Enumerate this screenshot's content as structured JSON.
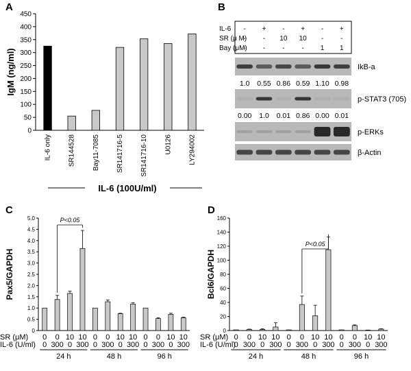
{
  "panels": {
    "A": "A",
    "B": "B",
    "C": "C",
    "D": "D"
  },
  "chart_data": [
    {
      "id": "A",
      "type": "bar",
      "ylabel": "IgM (ng/ml)",
      "ylim": [
        0,
        450
      ],
      "yticks": [
        0,
        50,
        100,
        150,
        200,
        250,
        300,
        350,
        400,
        450
      ],
      "categories": [
        "IL-6 only",
        "SR144528",
        "Bay11-7085",
        "SR141716-5",
        "SR141716-10",
        "U0126",
        "LY294002"
      ],
      "values": [
        325,
        55,
        77,
        320,
        353,
        335,
        372
      ],
      "bar_colors": [
        "#000000",
        "#c8c8c8",
        "#c8c8c8",
        "#c8c8c8",
        "#c8c8c8",
        "#c8c8c8",
        "#c8c8c8"
      ],
      "group_label": "IL-6 (100U/ml)",
      "grid": false
    },
    {
      "id": "C",
      "type": "bar",
      "ylabel": "Pax5/GAPDH",
      "ylim": [
        0,
        5.0
      ],
      "yticks": [
        "0",
        "0.5",
        "1.0",
        "1.5",
        "2.0",
        "2.5",
        "3.0",
        "3.5",
        "4.0",
        "4.5",
        "5.0"
      ],
      "values": [
        1.0,
        1.38,
        1.65,
        3.65,
        1.0,
        1.28,
        0.75,
        1.18,
        1.0,
        0.53,
        0.72,
        0.57
      ],
      "errors": [
        0,
        0.18,
        0.1,
        0.8,
        0,
        0.08,
        0.02,
        0.06,
        0,
        0.04,
        0.05,
        0.03
      ],
      "row1_label": "SR (μM)",
      "row2_label": "IL-6 (U/ml)",
      "row1_values": [
        "0",
        "0",
        "10",
        "10",
        "0",
        "0",
        "10",
        "10",
        "0",
        "0",
        "10",
        "10"
      ],
      "row2_values": [
        "0",
        "300",
        "0",
        "300",
        "0",
        "300",
        "0",
        "300",
        "0",
        "300",
        "0",
        "300"
      ],
      "groups": [
        "24 h",
        "48 h",
        "96 h"
      ],
      "significance": "P<0.05",
      "grid": false
    },
    {
      "id": "D",
      "type": "bar",
      "ylabel": "Bcl6/GAPDH",
      "ylim": [
        0,
        160
      ],
      "yticks": [
        "0",
        "20",
        "40",
        "60",
        "80",
        "100",
        "120",
        "140",
        "160"
      ],
      "values": [
        1.0,
        1.5,
        1.5,
        5.0,
        1.0,
        37.0,
        21.0,
        115.0,
        1.0,
        7.0,
        0.5,
        2.0
      ],
      "errors": [
        0,
        0.5,
        1.0,
        6.0,
        0,
        12.0,
        15.0,
        18.0,
        0,
        1.0,
        0.2,
        0.5
      ],
      "row1_label": "SR (μM)",
      "row2_label": "IL-6 (U/ml)",
      "row1_values": [
        "0",
        "0",
        "10",
        "10",
        "0",
        "0",
        "10",
        "10",
        "0",
        "0",
        "10",
        "10"
      ],
      "row2_values": [
        "0",
        "300",
        "0",
        "300",
        "0",
        "300",
        "0",
        "300",
        "0",
        "300",
        "0",
        "300"
      ],
      "groups": [
        "24 h",
        "48 h",
        "96 h"
      ],
      "significance": "P<0.05",
      "grid": false
    }
  ],
  "blot": {
    "header_rows": [
      {
        "label": "IL-6",
        "values": [
          "-",
          "+",
          "-",
          "+",
          "-",
          "+"
        ]
      },
      {
        "label": "SR (μ M)",
        "values": [
          "-",
          "-",
          "10",
          "10",
          "-",
          "-"
        ]
      },
      {
        "label": "Bay (μM)",
        "values": [
          "-",
          "-",
          "-",
          "-",
          "1",
          "1"
        ]
      }
    ],
    "band_labels": [
      "IkB-a",
      "p-STAT3 (705)",
      "p-ERKs",
      "β-Actin"
    ],
    "ikb_quant": [
      "1.0",
      "0.55",
      "0.86",
      "0.59",
      "1.10",
      "0.98"
    ],
    "stat3_quant": [
      "0.00",
      "1.0",
      "0.01",
      "0.86",
      "0.00",
      "0.01"
    ],
    "colors": {
      "band_bg": "#b8b8b8",
      "band_dark": "#202020"
    }
  }
}
